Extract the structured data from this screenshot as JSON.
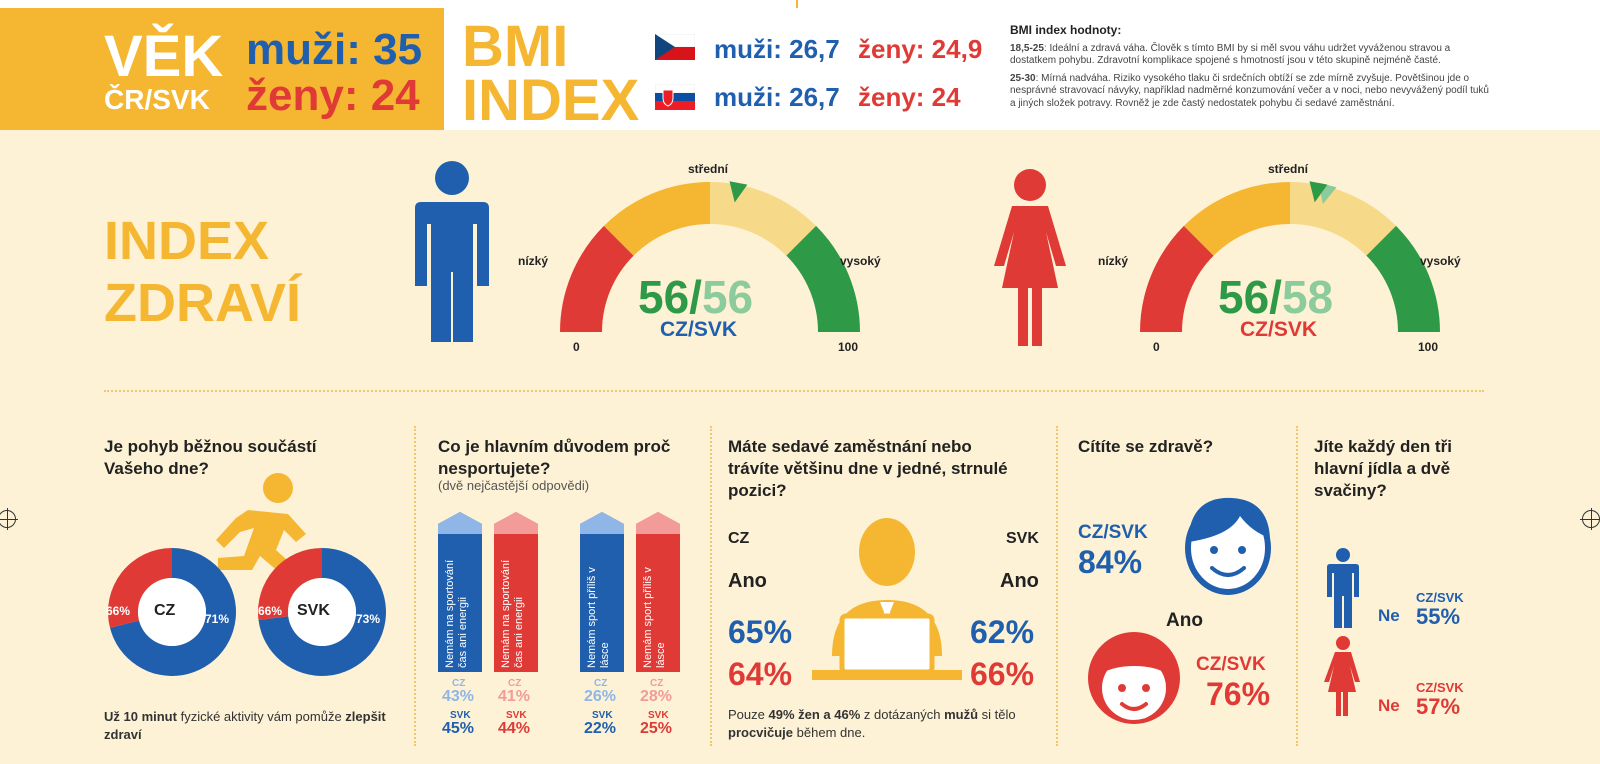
{
  "header": {
    "age_title_line1": "VĚK",
    "age_title_line2": "ČR/SVK",
    "men_age": "muži: 35",
    "women_age": "ženy: 24",
    "bmi_title_line1": "BMI",
    "bmi_title_line2": "INDEX",
    "cz_men": "muži: 26,7",
    "cz_women": "ženy: 24,9",
    "sk_men": "muži: 26,7",
    "sk_women": "ženy: 24",
    "bmi_info_title": "BMI index hodnoty:",
    "bmi_info_1_range": "18,5-25",
    "bmi_info_1_text": ": Ideální a zdravá váha. Člověk s tímto BMI by si měl svou váhu udržet vyváženou stravou a dostatkem pohybu. Zdravotní komplikace spojené s hmotností jsou v této skupině nejméně časté.",
    "bmi_info_2_range": "25-30",
    "bmi_info_2_text": ": Mírná nadváha. Riziko vysokého tlaku či srdečních obtíží se zde mírně zvyšuje. Povětšinou jde o nesprávné stravovací návyky, například nadměrné konzumování večer a v noci, nebo nevyvážený podíl tuků a jiných složek potravy. Rovněž je zde častý nedostatek pohybu či sedavé zaměstnání."
  },
  "health_index": {
    "title_line1": "INDEX",
    "title_line2": "ZDRAVÍ",
    "label_mid": "střední",
    "label_low": "nízký",
    "label_high": "vysoký",
    "scale_min": "0",
    "scale_max": "100",
    "men": {
      "cz": "56",
      "sep": "/",
      "svk": "56",
      "caption": "CZ/SVK",
      "cz_value": 56,
      "svk_value": 56
    },
    "women": {
      "cz": "56",
      "sep": "/",
      "svk": "58",
      "caption": "CZ/SVK",
      "cz_value": 56,
      "svk_value": 58
    }
  },
  "movement": {
    "question": "Je pohyb běžnou součástí Vašeho dne?",
    "cz_label": "CZ",
    "cz_left": "66%",
    "cz_right": "71%",
    "svk_label": "SVK",
    "svk_left": "66%",
    "svk_right": "73%",
    "cz_right_value": 71,
    "svk_right_value": 73,
    "footer_bold1": "Už 10 minut",
    "footer_text": " fyzické aktivity vám pomůže ",
    "footer_bold2": "zlepšit zdraví"
  },
  "reasons": {
    "question": "Co je hlavním důvodem proč nesportujete?",
    "sub": "(dvě nejčastější odpovědi)",
    "bar1_text": "Nemám na sportování čas ani energii",
    "bar2_text": "Nemám sport příliš v lásce",
    "cz_label": "CZ",
    "svk_label": "SVK",
    "men_time_cz": "43%",
    "men_time_svk": "45%",
    "women_time_cz": "41%",
    "women_time_svk": "44%",
    "men_love_cz": "26%",
    "men_love_svk": "22%",
    "women_love_cz": "28%",
    "women_love_svk": "25%"
  },
  "sedentary": {
    "question": "Máte sedavé zaměstnání nebo trávíte většinu dne v jedné, strnulé pozici?",
    "cz_label": "CZ",
    "svk_label": "SVK",
    "yes": "Ano",
    "cz_men": "65%",
    "cz_women": "64%",
    "svk_men": "62%",
    "svk_women": "66%",
    "footer_pre": "Pouze ",
    "footer_b1": "49% žen a 46%",
    "footer_mid": " z dotázaných ",
    "footer_b2": "mužů",
    "footer_mid2": " si tělo ",
    "footer_b3": "procvičuje",
    "footer_end": " během dne."
  },
  "healthy": {
    "question": "Cítíte se zdravě?",
    "men_label": "CZ/SVK",
    "men_pct": "84%",
    "yes": "Ano",
    "women_label": "CZ/SVK",
    "women_pct": "76%"
  },
  "meals": {
    "question": "Jíte každý den tři hlavní jídla a dvě svačiny?",
    "no": "Ne",
    "men_label": "CZ/SVK",
    "men_pct": "55%",
    "women_label": "CZ/SVK",
    "women_pct": "57%"
  },
  "colors": {
    "blue": "#1f5fae",
    "red": "#e03a36",
    "yellow": "#f5b731",
    "green": "#2e9a48",
    "cream": "#fdf2d6"
  }
}
